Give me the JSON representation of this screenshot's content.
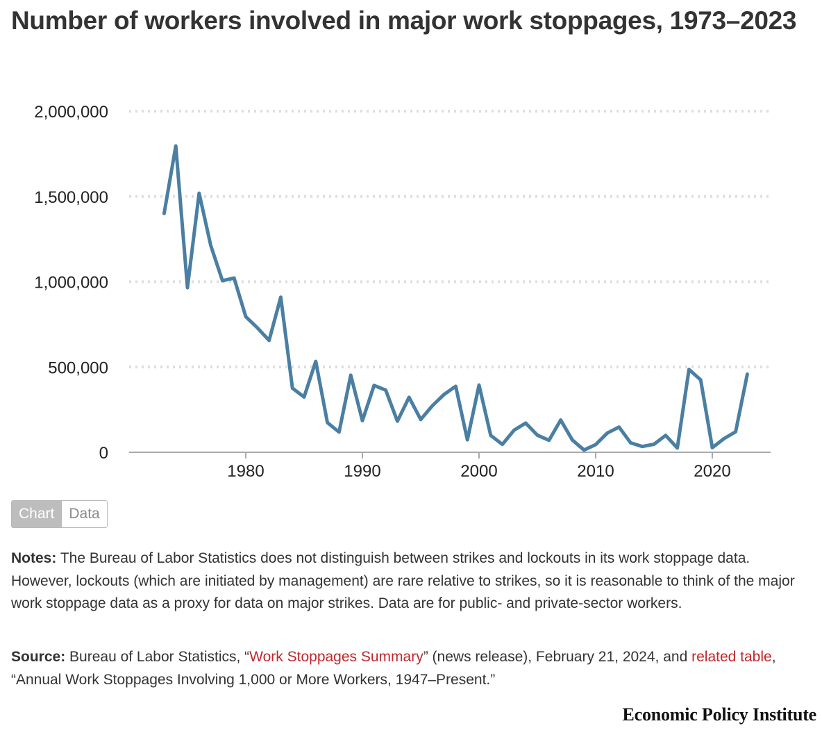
{
  "title": "Number of workers involved in major work stoppages, 1973–2023",
  "toggle": {
    "chart_label": "Chart",
    "data_label": "Data"
  },
  "notes": {
    "label": "Notes:",
    "text": "The Bureau of Labor Statistics does not distinguish between strikes and lockouts in its work stoppage data. However, lockouts (which are initiated by management) are rare relative to strikes, so it is reasonable to think of the major work stoppage data as a proxy for data on major strikes. Data are for public- and private-sector workers."
  },
  "source": {
    "label": "Source:",
    "text_1": "Bureau of Labor Statistics, “",
    "link_1": "Work Stoppages Summary",
    "text_2": "” (news release), February 21, 2024, and",
    "link_2": "related table",
    "text_3": ", “Annual Work Stoppages Involving 1,000 or More Workers, 1947–Present.”"
  },
  "brand": "Economic Policy Institute",
  "colors": {
    "line": "#4a7fa3",
    "grid": "#dedede",
    "axis": "#aaaaaa",
    "link": "#c0272d",
    "text": "#333333"
  },
  "chart_data": {
    "type": "line",
    "title": "Number of workers involved in major work stoppages, 1973–2023",
    "xlabel": "",
    "ylabel": "",
    "xlim": [
      1970,
      2025
    ],
    "ylim": [
      0,
      2000000
    ],
    "yticks": [
      0,
      500000,
      1000000,
      1500000,
      2000000
    ],
    "ytick_labels": [
      "0",
      "500,000",
      "1,000,000",
      "1,500,000",
      "2,000,000"
    ],
    "xticks": [
      1980,
      1990,
      2000,
      2010,
      2020
    ],
    "xtick_labels": [
      "1980",
      "1990",
      "2000",
      "2010",
      "2020"
    ],
    "grid": "horizontal dotted",
    "series": [
      {
        "x": [
          1973,
          1974,
          1975,
          1976,
          1977,
          1978,
          1979,
          1980,
          1981,
          1982,
          1983,
          1984,
          1985,
          1986,
          1987,
          1988,
          1989,
          1990,
          1991,
          1992,
          1993,
          1994,
          1995,
          1996,
          1997,
          1998,
          1999,
          2000,
          2001,
          2002,
          2003,
          2004,
          2005,
          2006,
          2007,
          2008,
          2009,
          2010,
          2011,
          2012,
          2013,
          2014,
          2015,
          2016,
          2017,
          2018,
          2019,
          2020,
          2021,
          2022,
          2023
        ],
        "values": [
          1400000,
          1796000,
          965000,
          1519000,
          1212000,
          1006000,
          1021000,
          795000,
          729000,
          656000,
          909000,
          376000,
          324000,
          533000,
          174000,
          118000,
          452000,
          185000,
          392000,
          364000,
          182000,
          322000,
          192000,
          273000,
          339000,
          387000,
          73000,
          394000,
          99000,
          46000,
          129000,
          171000,
          100000,
          70000,
          189000,
          72000,
          13000,
          45000,
          113000,
          148000,
          55000,
          34000,
          47000,
          99000,
          25000,
          485000,
          425000,
          27000,
          80000,
          120000,
          458000
        ]
      }
    ]
  }
}
